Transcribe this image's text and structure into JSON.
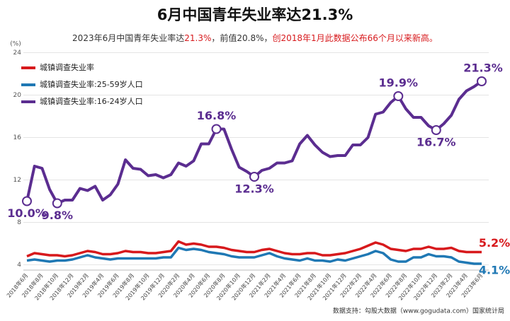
{
  "chart_data": {
    "type": "line",
    "title": "6月中国青年失业率达21.3%",
    "subtitle": [
      {
        "text": "2023年6月中国青年失业率达",
        "color": "#333333"
      },
      {
        "text": "21.3%",
        "color": "#d7191c"
      },
      {
        "text": "，前值20.8%，",
        "color": "#333333"
      },
      {
        "text": "创2018年1月此数据公布66个月以来新高。",
        "color": "#d7191c"
      }
    ],
    "y_unit": "(%)",
    "source": "数据支持：勾股大数据（www.gogudata.com）国家统计局",
    "categories": [
      "2018年6月",
      null,
      "2018年8月",
      null,
      "2018年10月",
      null,
      "2018年12月",
      null,
      "2019年2月",
      null,
      "2019年4月",
      null,
      "2019年6月",
      null,
      "2019年8月",
      null,
      "2019年10月",
      null,
      "2019年12月",
      null,
      "2020年2月",
      null,
      "2020年4月",
      null,
      "2020年6月",
      null,
      "2020年8月",
      null,
      "2020年10月",
      null,
      "2020年12月",
      null,
      "2021年2月",
      null,
      "2021年4月",
      null,
      "2021年6月",
      null,
      "2021年8月",
      null,
      "2021年10月",
      null,
      "2021年12月",
      null,
      "2022年2月",
      null,
      "2022年4月",
      null,
      "2022年6月",
      null,
      "2022年8月",
      null,
      "2022年10月",
      null,
      "2022年12月",
      null,
      "2023年2月",
      null,
      "2023年4月",
      null,
      "2023年6月"
    ],
    "ylim": [
      3.5,
      24.5
    ],
    "yticks": [
      4,
      8,
      12,
      16,
      20,
      24
    ],
    "grid": true,
    "series": [
      {
        "name": "城镇调查失业率",
        "color": "#d7191c",
        "values": [
          4.8,
          5.1,
          5.0,
          4.9,
          4.9,
          4.8,
          4.9,
          5.1,
          5.3,
          5.2,
          5.0,
          5.0,
          5.1,
          5.3,
          5.2,
          5.2,
          5.1,
          5.1,
          5.2,
          5.3,
          6.2,
          5.9,
          6.0,
          5.9,
          5.7,
          5.7,
          5.6,
          5.4,
          5.3,
          5.2,
          5.2,
          5.4,
          5.5,
          5.3,
          5.1,
          5.0,
          5.0,
          5.1,
          5.1,
          4.9,
          4.9,
          5.0,
          5.1,
          5.3,
          5.5,
          5.8,
          6.1,
          5.9,
          5.5,
          5.4,
          5.3,
          5.5,
          5.5,
          5.7,
          5.5,
          5.5,
          5.6,
          5.3,
          5.2,
          5.2,
          5.2
        ],
        "value_labels": [
          null,
          null,
          null,
          null,
          null,
          null,
          null,
          null,
          null,
          null,
          null,
          null,
          null,
          null,
          null,
          null,
          null,
          null,
          null,
          null,
          null,
          null,
          null,
          null,
          null,
          null,
          null,
          null,
          null,
          null,
          null,
          null,
          null,
          null,
          null,
          null,
          null,
          null,
          null,
          null,
          null,
          null,
          null,
          null,
          null,
          null,
          null,
          null,
          null,
          null,
          null,
          null,
          null,
          null,
          null,
          null,
          null,
          null,
          null,
          null,
          "5.2%"
        ]
      },
      {
        "name": "城镇调查失业率:25-59岁人口",
        "color": "#1f78b4",
        "values": [
          4.4,
          4.5,
          4.4,
          4.3,
          4.4,
          4.4,
          4.5,
          4.7,
          4.9,
          4.7,
          4.6,
          4.5,
          4.6,
          4.6,
          4.6,
          4.6,
          4.6,
          4.6,
          4.7,
          4.7,
          5.6,
          5.4,
          5.5,
          5.4,
          5.2,
          5.1,
          5.0,
          4.8,
          4.7,
          4.7,
          4.7,
          4.9,
          5.1,
          4.8,
          4.6,
          4.5,
          4.4,
          4.6,
          4.4,
          4.4,
          4.3,
          4.5,
          4.4,
          4.6,
          4.8,
          5.0,
          5.3,
          5.1,
          4.5,
          4.3,
          4.3,
          4.7,
          4.7,
          5.0,
          4.8,
          4.8,
          4.7,
          4.3,
          4.2,
          4.1,
          4.1
        ],
        "value_labels": [
          null,
          null,
          null,
          null,
          null,
          null,
          null,
          null,
          null,
          null,
          null,
          null,
          null,
          null,
          null,
          null,
          null,
          null,
          null,
          null,
          null,
          null,
          null,
          null,
          null,
          null,
          null,
          null,
          null,
          null,
          null,
          null,
          null,
          null,
          null,
          null,
          null,
          null,
          null,
          null,
          null,
          null,
          null,
          null,
          null,
          null,
          null,
          null,
          null,
          null,
          null,
          null,
          null,
          null,
          null,
          null,
          null,
          null,
          null,
          null,
          "4.1%"
        ]
      },
      {
        "name": "城镇调查失业率:16-24岁人口",
        "color": "#5b2d90",
        "values": [
          10.0,
          13.3,
          13.1,
          11.1,
          9.8,
          10.1,
          10.1,
          11.2,
          11.0,
          11.4,
          10.1,
          10.6,
          11.6,
          13.9,
          13.1,
          13.0,
          12.4,
          12.5,
          12.2,
          12.5,
          13.6,
          13.3,
          13.8,
          15.4,
          15.4,
          16.8,
          16.8,
          14.9,
          13.2,
          12.8,
          12.3,
          12.9,
          13.1,
          13.6,
          13.6,
          13.8,
          15.4,
          16.2,
          15.3,
          14.6,
          14.2,
          14.3,
          14.3,
          15.3,
          15.3,
          16.0,
          18.2,
          18.4,
          19.3,
          19.9,
          18.7,
          17.9,
          17.9,
          17.1,
          16.7,
          17.3,
          18.1,
          19.6,
          20.4,
          20.8,
          21.3
        ],
        "value_labels": [
          "10.0%",
          null,
          null,
          null,
          "9.8%",
          null,
          null,
          null,
          null,
          null,
          null,
          null,
          null,
          null,
          null,
          null,
          null,
          null,
          null,
          null,
          null,
          null,
          null,
          null,
          null,
          "16.8%",
          null,
          null,
          null,
          null,
          "12.3%",
          null,
          null,
          null,
          null,
          null,
          null,
          null,
          null,
          null,
          null,
          null,
          null,
          null,
          null,
          null,
          null,
          null,
          null,
          "19.9%",
          null,
          null,
          null,
          null,
          "16.7%",
          null,
          null,
          null,
          null,
          null,
          "21.3%"
        ]
      }
    ]
  }
}
